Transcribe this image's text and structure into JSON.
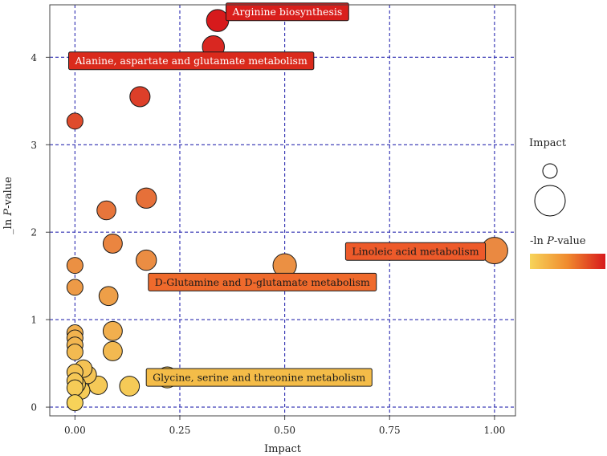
{
  "chart_data": {
    "type": "scatter",
    "title": "",
    "xlabel": "Impact",
    "ylabel_prefix": "_ln ",
    "ylabel_italic": "P",
    "ylabel_suffix": "-value",
    "xlim": [
      -0.06,
      1.05
    ],
    "ylim": [
      -0.1,
      4.6
    ],
    "x_ticks": [
      0.0,
      0.25,
      0.5,
      0.75,
      1.0
    ],
    "x_tick_labels": [
      "0.00",
      "0.25",
      "0.50",
      "0.75",
      "1.00"
    ],
    "y_ticks": [
      0,
      1,
      2,
      3,
      4
    ],
    "y_tick_labels": [
      "0",
      "1",
      "2",
      "3",
      "4"
    ],
    "grid": true,
    "grid_style": "dashed",
    "grid_color": "#2b2bb0",
    "color_low": "#f7d45a",
    "color_high": "#d7191c",
    "points": [
      {
        "x": 0.34,
        "y": 4.42,
        "label": "Arginine biosynthesis"
      },
      {
        "x": 0.33,
        "y": 4.12,
        "label": "Alanine, aspartate and glutamate metabolism"
      },
      {
        "x": 0.155,
        "y": 3.55,
        "label": ""
      },
      {
        "x": 0.0,
        "y": 3.27,
        "label": ""
      },
      {
        "x": 0.17,
        "y": 2.39,
        "label": ""
      },
      {
        "x": 0.075,
        "y": 2.25,
        "label": ""
      },
      {
        "x": 0.09,
        "y": 1.87,
        "label": ""
      },
      {
        "x": 1.0,
        "y": 1.79,
        "label": "Linoleic acid metabolism"
      },
      {
        "x": 0.17,
        "y": 1.68,
        "label": "D-Glutamine and D-glutamate metabolism"
      },
      {
        "x": 0.5,
        "y": 1.62,
        "label": ""
      },
      {
        "x": 0.0,
        "y": 1.62,
        "label": ""
      },
      {
        "x": 0.0,
        "y": 1.37,
        "label": ""
      },
      {
        "x": 0.08,
        "y": 1.27,
        "label": ""
      },
      {
        "x": 0.09,
        "y": 0.87,
        "label": ""
      },
      {
        "x": 0.0,
        "y": 0.85,
        "label": ""
      },
      {
        "x": 0.0,
        "y": 0.79,
        "label": ""
      },
      {
        "x": 0.0,
        "y": 0.71,
        "label": ""
      },
      {
        "x": 0.0,
        "y": 0.63,
        "label": ""
      },
      {
        "x": 0.09,
        "y": 0.64,
        "label": ""
      },
      {
        "x": 0.02,
        "y": 0.44,
        "label": ""
      },
      {
        "x": 0.0,
        "y": 0.4,
        "label": ""
      },
      {
        "x": 0.03,
        "y": 0.37,
        "label": ""
      },
      {
        "x": 0.0,
        "y": 0.3,
        "label": ""
      },
      {
        "x": 0.22,
        "y": 0.34,
        "label": "Glycine, serine and threonine metabolism"
      },
      {
        "x": 0.005,
        "y": 0.26,
        "label": ""
      },
      {
        "x": 0.055,
        "y": 0.25,
        "label": ""
      },
      {
        "x": 0.13,
        "y": 0.24,
        "label": ""
      },
      {
        "x": 0.0,
        "y": 0.22,
        "label": ""
      },
      {
        "x": 0.015,
        "y": 0.19,
        "label": ""
      },
      {
        "x": 0.0,
        "y": 0.05,
        "label": ""
      }
    ],
    "annotations": [
      {
        "text": "Arginine biosynthesis",
        "x": 0.36,
        "y": 4.52,
        "fill": "#d91f1c",
        "text_color": "#ffffff"
      },
      {
        "text": "Alanine, aspartate and glutamate metabolism",
        "x": -0.015,
        "y": 3.96,
        "fill": "#da2a1c",
        "text_color": "#ffffff"
      },
      {
        "text": "Linoleic acid metabolism",
        "x": 0.645,
        "y": 1.78,
        "fill": "#ed5a2a",
        "text_color": "#1a1a1a"
      },
      {
        "text": "D-Glutamine and D-glutamate metabolism",
        "x": 0.175,
        "y": 1.43,
        "fill": "#ef6a2c",
        "text_color": "#1a1a1a"
      },
      {
        "text": "Glycine, serine and threonine metabolism",
        "x": 0.17,
        "y": 0.34,
        "fill": "#f4bc48",
        "text_color": "#1a1a1a"
      }
    ],
    "legend": {
      "size_title": "Impact",
      "color_title_prefix": "-ln ",
      "color_title_italic": "P",
      "color_title_suffix": "-value"
    }
  }
}
